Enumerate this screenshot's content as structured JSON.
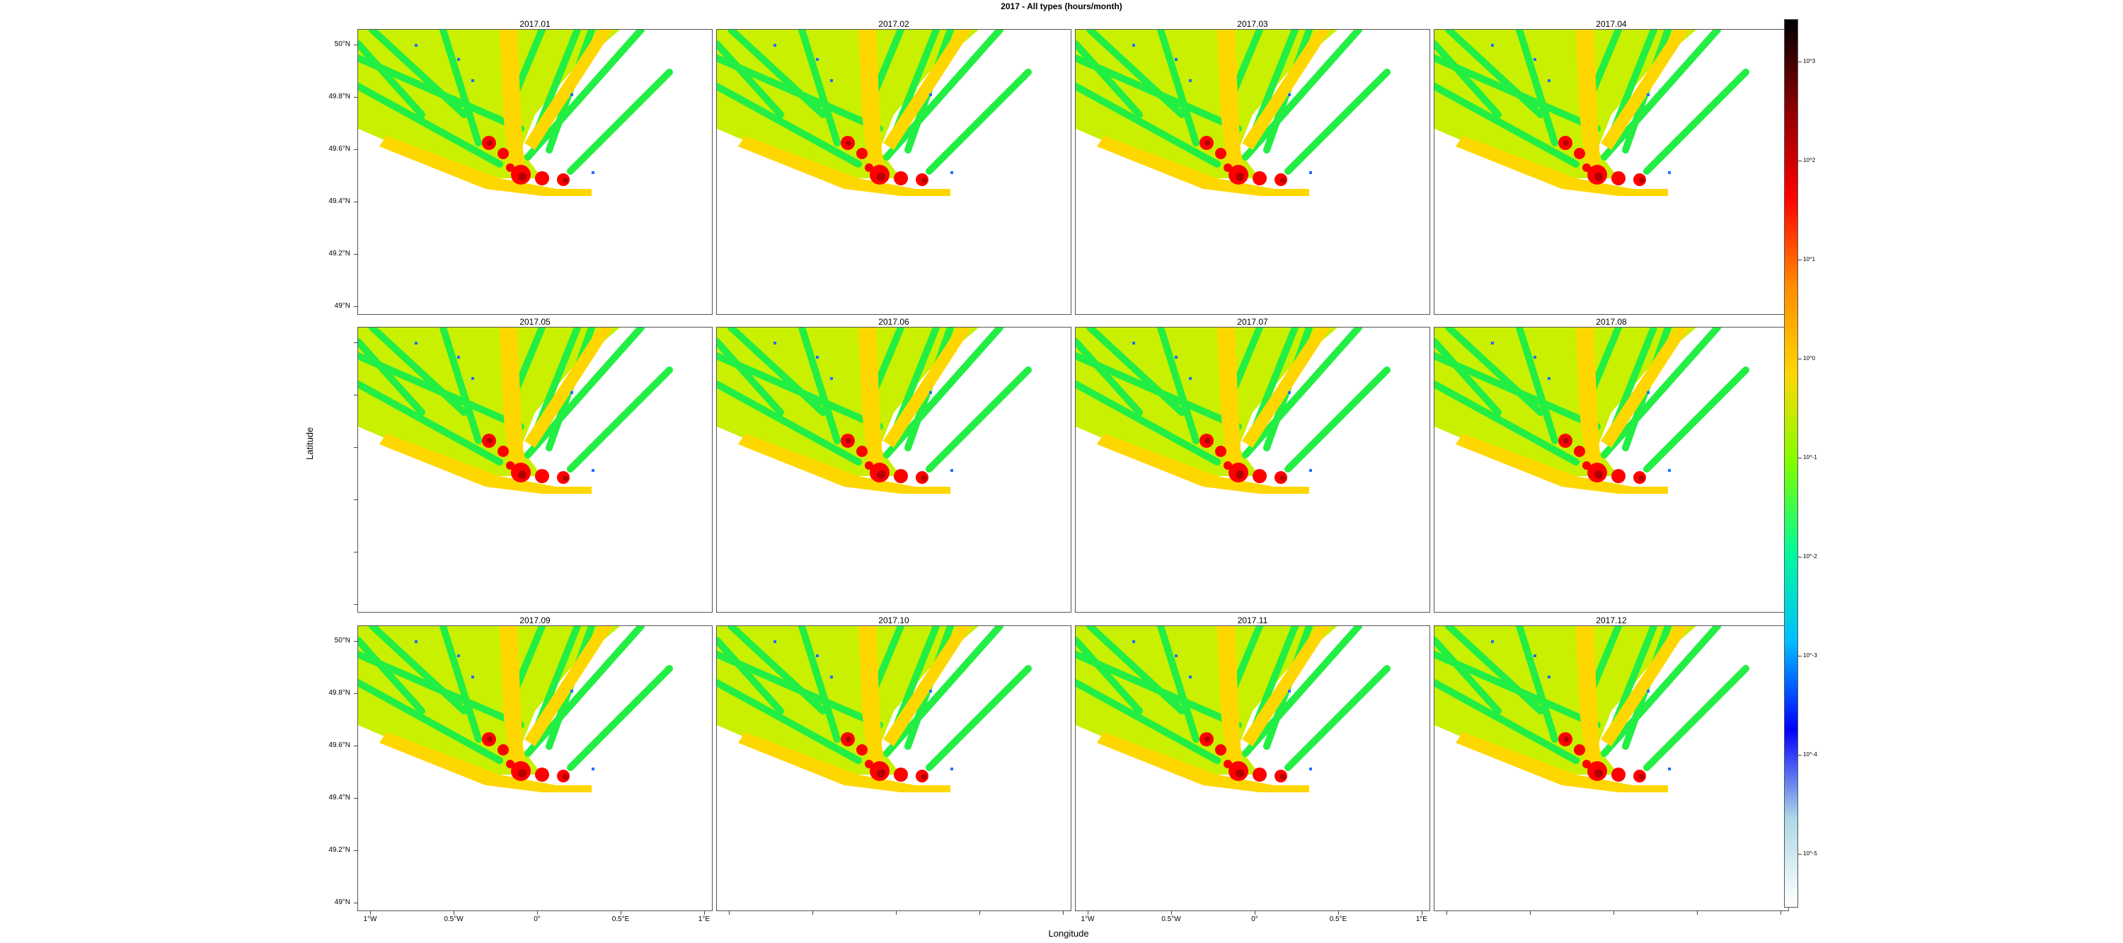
{
  "title": "2017 - All types (hours/month)",
  "panels": [
    "2017.01",
    "2017.02",
    "2017.03",
    "2017.04",
    "2017.05",
    "2017.06",
    "2017.07",
    "2017.08",
    "2017.09",
    "2017.10",
    "2017.11",
    "2017.12"
  ],
  "y_axis": {
    "label": "Latitude",
    "ticks": [
      "50°N",
      "49.8°N",
      "49.6°N",
      "49.4°N",
      "49.2°N",
      "49°N"
    ]
  },
  "x_axis": {
    "label": "Longitude",
    "ticks": [
      "1°W",
      "0.5°W",
      "0°",
      "0.5°E",
      "1°E"
    ]
  },
  "colorbar": {
    "scale": "log",
    "labels": [
      "10^3",
      "10^2",
      "10^1",
      "10^0",
      "10^-1",
      "10^-2",
      "10^-3",
      "10^-4",
      "10^-5"
    ],
    "colors": [
      "#000000",
      "#8b0000",
      "#ff0000",
      "#ff8c00",
      "#ffd700",
      "#7fff00",
      "#00fa9a",
      "#00bfff",
      "#0000ff",
      "#add8e6",
      "#ffffff"
    ]
  },
  "map_colors": {
    "high": "#b20000",
    "mid": "#ff0000",
    "midlow": "#ffd700",
    "low": "#c8f000",
    "verylow": "#22ee44",
    "rare": "#1f6fff"
  }
}
